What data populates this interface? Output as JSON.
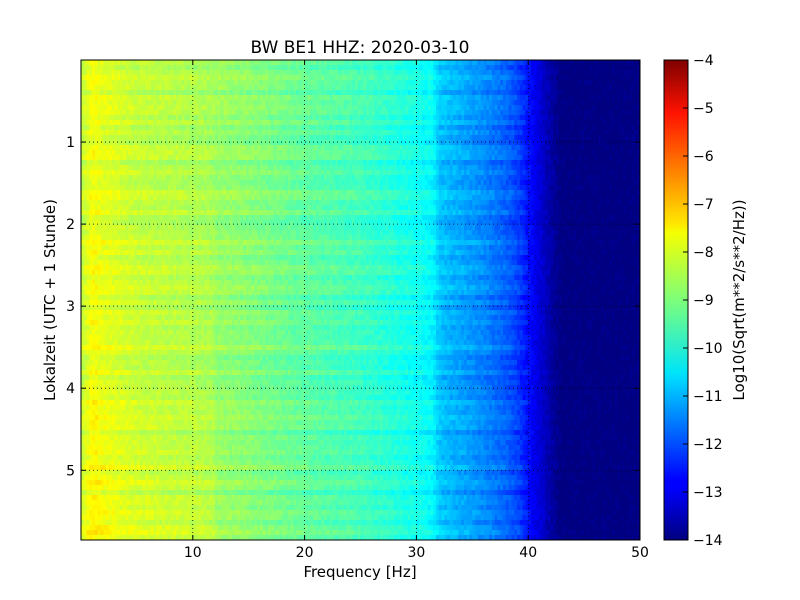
{
  "chart_data": {
    "type": "heatmap",
    "title": "BW BE1 HHZ: 2020-03-10",
    "xlabel": "Frequency [Hz]",
    "ylabel": "Lokalzeit (UTC + 1 Stunde)",
    "xlim": [
      0,
      50
    ],
    "ylim": [
      0,
      5.85
    ],
    "y_inverted": true,
    "x_ticks": [
      10,
      20,
      30,
      40,
      50
    ],
    "y_ticks": [
      1,
      2,
      3,
      4,
      5
    ],
    "grid": true,
    "colormap": "jet",
    "colorbar": {
      "label": "Log10(Sqrt(m**2/s**2/Hz))",
      "range": [
        -14,
        -4
      ],
      "ticks": [
        -14,
        -13,
        -12,
        -11,
        -10,
        -9,
        -8,
        -7,
        -6,
        -5,
        -4
      ]
    },
    "spectrum_profile": {
      "frequency_hz": [
        0,
        1,
        2,
        5,
        10,
        15,
        20,
        25,
        28,
        30,
        31.5,
        32,
        34,
        36,
        38,
        39,
        40,
        41,
        42,
        43,
        44,
        50
      ],
      "log10_amplitude": [
        -8.5,
        -7.9,
        -8.1,
        -8.4,
        -8.6,
        -8.9,
        -9.3,
        -9.6,
        -9.9,
        -10.1,
        -10.3,
        -10.8,
        -11.1,
        -11.4,
        -11.8,
        -12.1,
        -12.6,
        -13.1,
        -13.6,
        -14.0,
        -14.0,
        -14.0
      ]
    }
  }
}
